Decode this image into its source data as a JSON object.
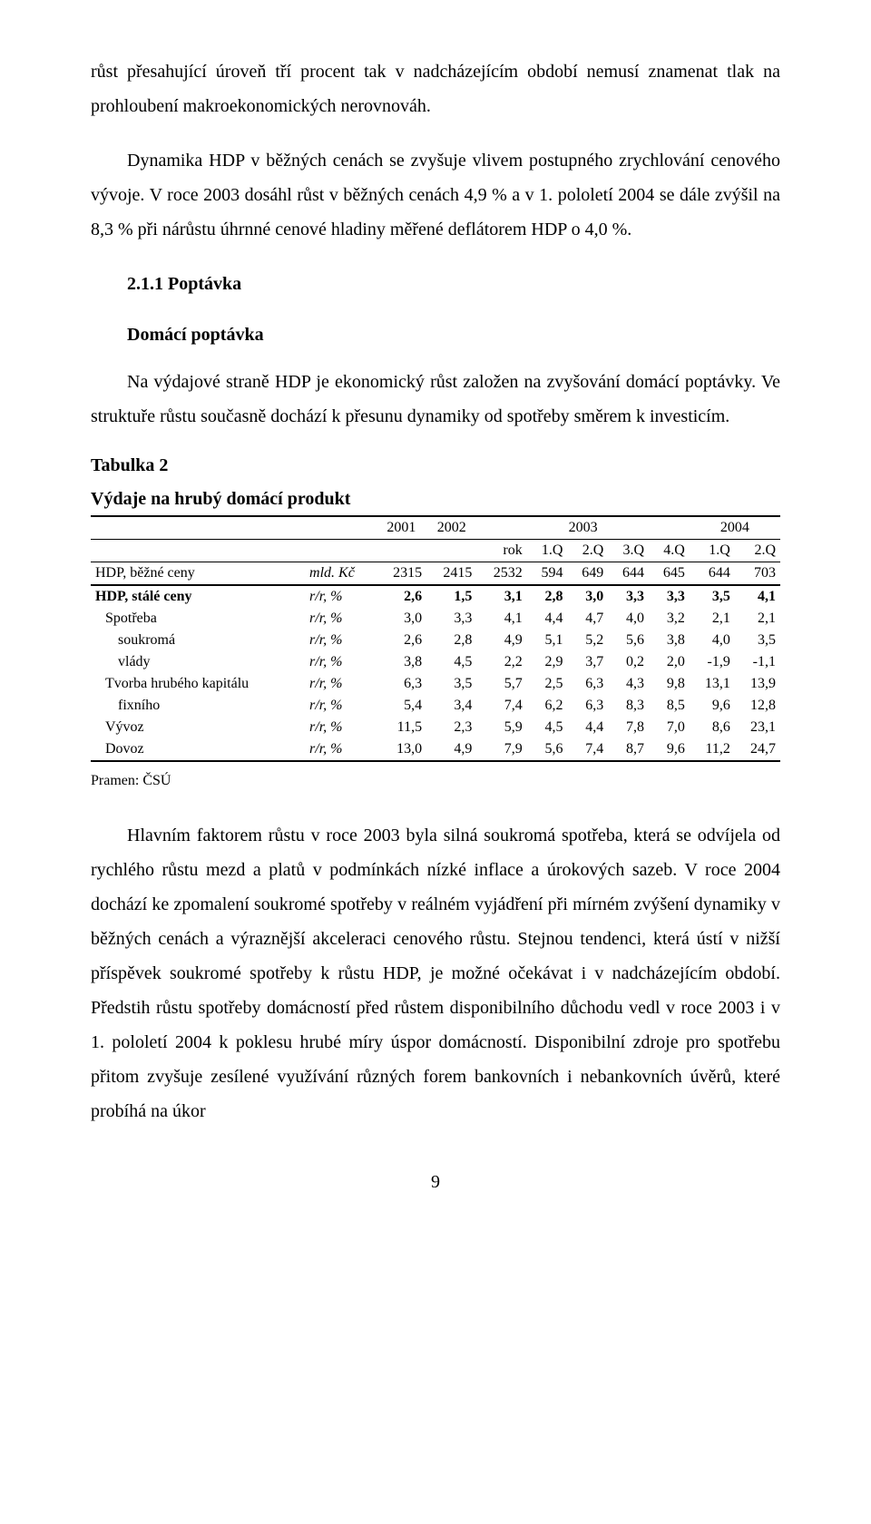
{
  "paragraphs": {
    "p1": "růst přesahující úroveň tří procent tak v nadcházejícím období nemusí znamenat tlak na prohloubení makroekonomických nerovnováh.",
    "p2": "Dynamika HDP v běžných cenách se zvyšuje vlivem postupného zrychlování cenového vývoje. V roce 2003 dosáhl růst v běžných cenách 4,9 % a v 1. pololetí 2004 se dále zvýšil na 8,3 % při nárůstu úhrnné cenové hladiny měřené deflátorem HDP o 4,0 %.",
    "p3": "Na výdajové straně HDP je ekonomický růst založen na zvyšování domácí poptávky. Ve struktuře růstu současně dochází k přesunu dynamiky od spotřeby směrem k investicím.",
    "p4": "Hlavním faktorem růstu v roce 2003 byla silná soukromá spotřeba, která se odvíjela od rychlého růstu mezd a platů v podmínkách nízké inflace a úrokových sazeb. V roce 2004 dochází ke zpomalení soukromé spotřeby v reálném vyjádření při mírném zvýšení dynamiky v běžných cenách a výraznější akceleraci cenového růstu. Stejnou tendenci, která ústí v nižší příspěvek soukromé spotřeby k růstu HDP, je možné očekávat i v nadcházejícím období. Předstih růstu spotřeby domácností před růstem disponibilního důchodu vedl v roce 2003 i v 1. pololetí 2004 k poklesu hrubé míry úspor domácností. Disponibilní zdroje pro spotřebu přitom zvyšuje zesílené využívání různých forem bankovních i nebankovních úvěrů, které probíhá na úkor"
  },
  "headings": {
    "section": "2.1.1 Poptávka",
    "sub": "Domácí poptávka",
    "table_no": "Tabulka 2",
    "table_title": "Výdaje na hrubý domácí produkt"
  },
  "source": "Pramen: ČSÚ",
  "page_number": "9",
  "table": {
    "years": [
      "2001",
      "2002",
      "2003",
      "2004"
    ],
    "subcols": [
      "rok",
      "1.Q",
      "2.Q",
      "3.Q",
      "4.Q",
      "1.Q",
      "2.Q"
    ],
    "rows": [
      {
        "label": "HDP, běžné ceny",
        "unit": "mld. Kč",
        "bold": false,
        "indent": 0,
        "special": "bezne",
        "vals": [
          "2315",
          "2415",
          "2532",
          "594",
          "649",
          "644",
          "645",
          "644",
          "703"
        ]
      },
      {
        "label": "HDP, stálé ceny",
        "unit": "r/r, %",
        "bold": true,
        "indent": 0,
        "vals": [
          "2,6",
          "1,5",
          "3,1",
          "2,8",
          "3,0",
          "3,3",
          "3,3",
          "3,5",
          "4,1"
        ]
      },
      {
        "label": "Spotřeba",
        "unit": "r/r, %",
        "bold": false,
        "indent": 1,
        "vals": [
          "3,0",
          "3,3",
          "4,1",
          "4,4",
          "4,7",
          "4,0",
          "3,2",
          "2,1",
          "2,1"
        ]
      },
      {
        "label": "soukromá",
        "unit": "r/r, %",
        "bold": false,
        "indent": 2,
        "vals": [
          "2,6",
          "2,8",
          "4,9",
          "5,1",
          "5,2",
          "5,6",
          "3,8",
          "4,0",
          "3,5"
        ]
      },
      {
        "label": "vlády",
        "unit": "r/r, %",
        "bold": false,
        "indent": 2,
        "vals": [
          "3,8",
          "4,5",
          "2,2",
          "2,9",
          "3,7",
          "0,2",
          "2,0",
          "-1,9",
          "-1,1"
        ]
      },
      {
        "label": "Tvorba hrubého kapitálu",
        "unit": "r/r, %",
        "bold": false,
        "indent": 1,
        "vals": [
          "6,3",
          "3,5",
          "5,7",
          "2,5",
          "6,3",
          "4,3",
          "9,8",
          "13,1",
          "13,9"
        ]
      },
      {
        "label": "fixního",
        "unit": "r/r, %",
        "bold": false,
        "indent": 2,
        "vals": [
          "5,4",
          "3,4",
          "7,4",
          "6,2",
          "6,3",
          "8,3",
          "8,5",
          "9,6",
          "12,8"
        ]
      },
      {
        "label": "Vývoz",
        "unit": "r/r, %",
        "bold": false,
        "indent": 1,
        "vals": [
          "11,5",
          "2,3",
          "5,9",
          "4,5",
          "4,4",
          "7,8",
          "7,0",
          "8,6",
          "23,1"
        ]
      },
      {
        "label": "Dovoz",
        "unit": "r/r, %",
        "bold": false,
        "indent": 1,
        "special": "last",
        "vals": [
          "13,0",
          "4,9",
          "7,9",
          "5,6",
          "7,4",
          "8,7",
          "9,6",
          "11,2",
          "24,7"
        ]
      }
    ]
  }
}
